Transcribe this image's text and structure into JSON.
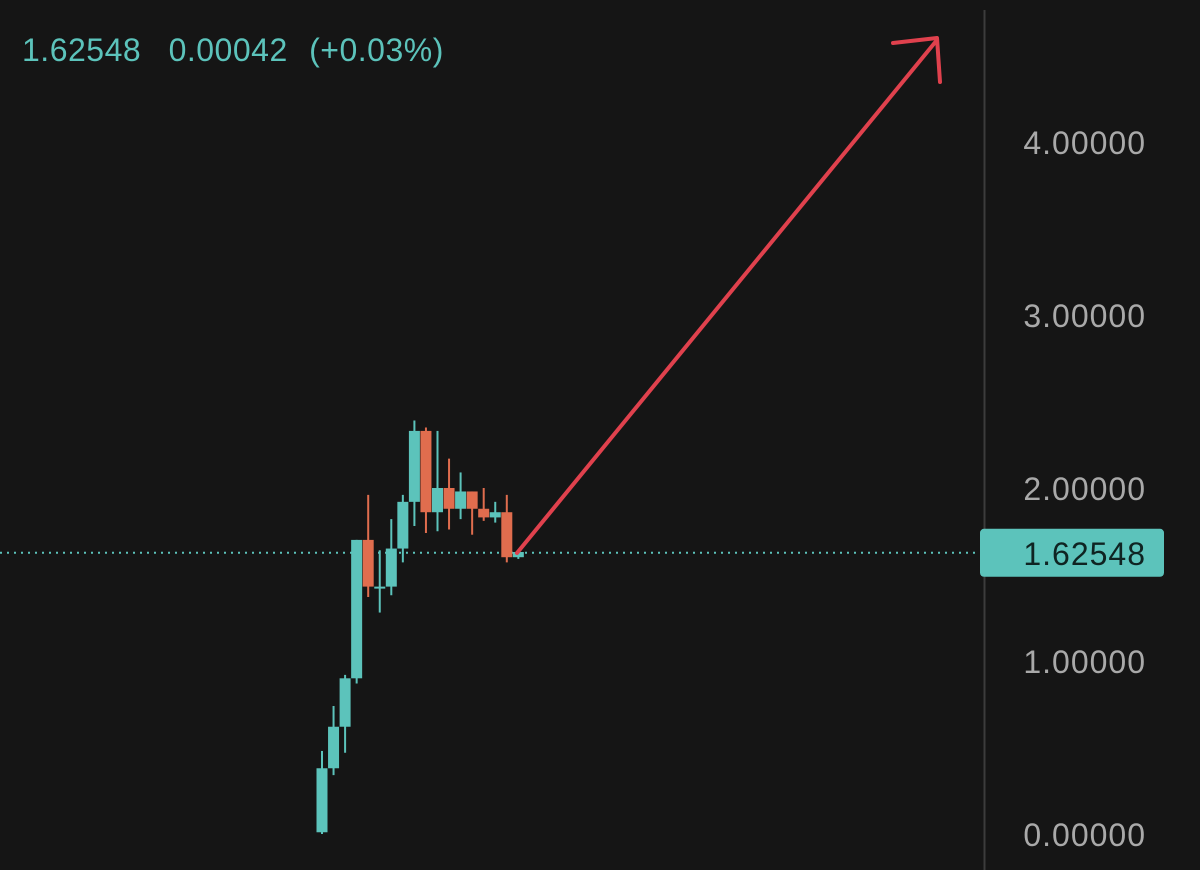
{
  "header": {
    "last_price": "1.62548",
    "change": "0.00042",
    "change_pct": "(+0.03%)"
  },
  "price_axis": {
    "current_price_label": "1.62548"
  },
  "colors": {
    "background": "#151515",
    "up": "#5cc3bb",
    "down": "#e06d4e",
    "axis_text": "#a9a9a9",
    "arrow": "#e0414d"
  },
  "chart_data": {
    "type": "candlestick",
    "ylim": [
      0,
      4.8
    ],
    "y_ticks": [
      {
        "value": 4,
        "label": "4.00000"
      },
      {
        "value": 3,
        "label": "3.00000"
      },
      {
        "value": 2,
        "label": "2.00000"
      },
      {
        "value": 1,
        "label": "1.00000"
      },
      {
        "value": 0,
        "label": "0.00000"
      }
    ],
    "current_price": 1.62548,
    "candles": [
      {
        "open": 0.01,
        "high": 0.48,
        "low": 0.0,
        "close": 0.38
      },
      {
        "open": 0.38,
        "high": 0.74,
        "low": 0.34,
        "close": 0.62
      },
      {
        "open": 0.62,
        "high": 0.92,
        "low": 0.47,
        "close": 0.9
      },
      {
        "open": 0.9,
        "high": 1.7,
        "low": 0.87,
        "close": 1.7
      },
      {
        "open": 1.7,
        "high": 1.96,
        "low": 1.37,
        "close": 1.43
      },
      {
        "open": 1.43,
        "high": 1.64,
        "low": 1.28,
        "close": 1.43
      },
      {
        "open": 1.43,
        "high": 1.82,
        "low": 1.38,
        "close": 1.65
      },
      {
        "open": 1.65,
        "high": 1.96,
        "low": 1.57,
        "close": 1.92
      },
      {
        "open": 1.92,
        "high": 2.39,
        "low": 1.78,
        "close": 2.33
      },
      {
        "open": 2.33,
        "high": 2.35,
        "low": 1.74,
        "close": 1.86
      },
      {
        "open": 1.86,
        "high": 2.33,
        "low": 1.75,
        "close": 2.0
      },
      {
        "open": 2.0,
        "high": 2.17,
        "low": 1.76,
        "close": 1.88
      },
      {
        "open": 1.88,
        "high": 2.09,
        "low": 1.82,
        "close": 1.98
      },
      {
        "open": 1.98,
        "high": 1.98,
        "low": 1.73,
        "close": 1.88
      },
      {
        "open": 1.88,
        "high": 2.0,
        "low": 1.81,
        "close": 1.83
      },
      {
        "open": 1.83,
        "high": 1.92,
        "low": 1.8,
        "close": 1.86
      },
      {
        "open": 1.86,
        "high": 1.96,
        "low": 1.57,
        "close": 1.6
      },
      {
        "open": 1.6,
        "high": 1.64,
        "low": 1.59,
        "close": 1.63
      }
    ]
  }
}
